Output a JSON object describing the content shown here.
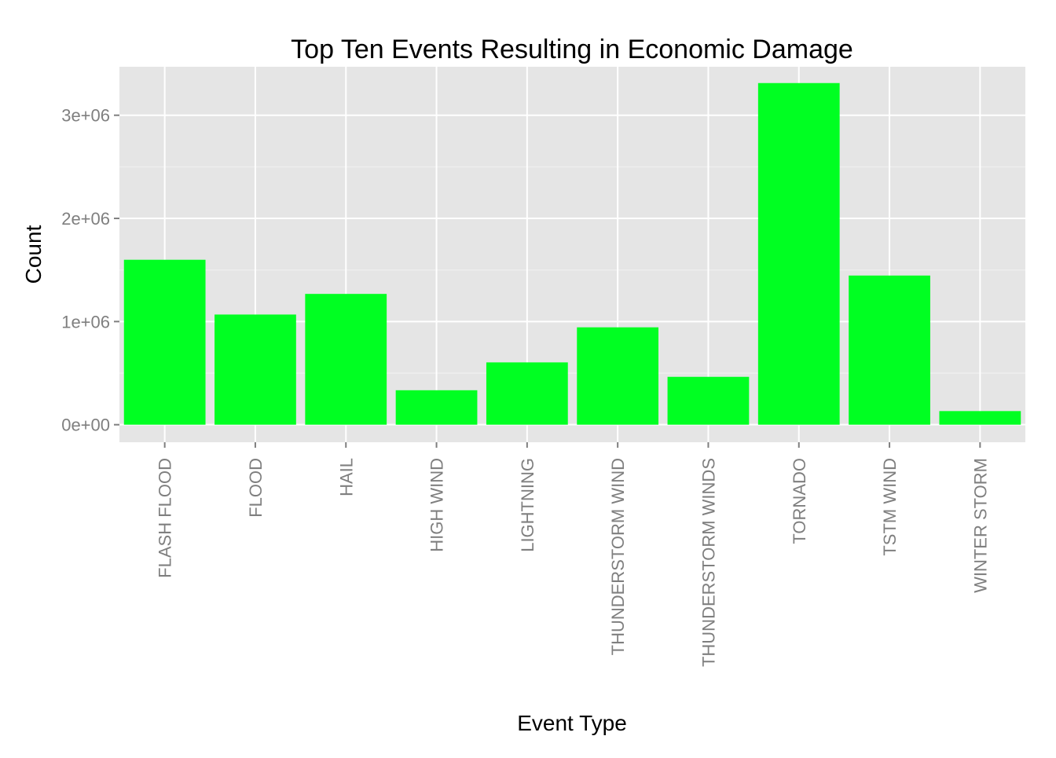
{
  "chart_data": {
    "type": "bar",
    "title": "Top Ten Events Resulting in Economic Damage",
    "xlabel": "Event Type",
    "ylabel": "Count",
    "categories": [
      "FLASH FLOOD",
      "FLOOD",
      "HAIL",
      "HIGH WIND",
      "LIGHTNING",
      "THUNDERSTORM WIND",
      "THUNDERSTORM WINDS",
      "TORNADO",
      "TSTM WIND",
      "WINTER STORM"
    ],
    "values": [
      1599000,
      1068000,
      1268000,
      334000,
      604000,
      944000,
      464000,
      3312000,
      1446000,
      132000
    ],
    "ylim": [
      -170000,
      3470000
    ],
    "y_ticks": [
      0,
      1000000,
      2000000,
      3000000
    ],
    "y_tick_labels": [
      "0e+00",
      "1e+06",
      "2e+06",
      "3e+06"
    ],
    "grid": true,
    "legend": "none",
    "colors": {
      "bar": "#00ff22",
      "panel_background": "#e5e5e5",
      "grid_major": "#ffffff",
      "grid_minor": "#f2f2f2",
      "tick_text": "#7f7f7f",
      "title_text": "#000000"
    }
  }
}
